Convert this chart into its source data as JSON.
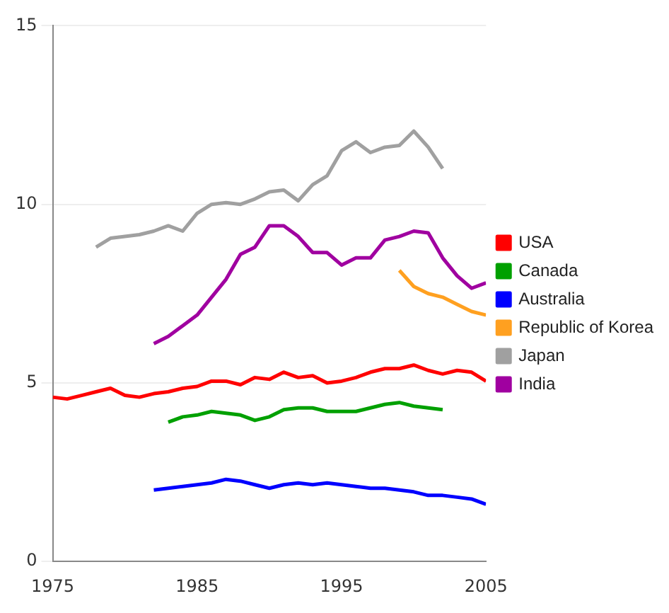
{
  "chart_data": {
    "type": "line",
    "xlim": [
      1975,
      2005
    ],
    "xticks": [
      1975,
      1985,
      1995,
      2005
    ],
    "ylim": [
      0,
      15
    ],
    "yticks": [
      0,
      5,
      10,
      15
    ],
    "grid": "y",
    "legend": "right",
    "marker": "none",
    "line_style": "solid",
    "series": [
      {
        "name": "USA",
        "color": "#ff0000",
        "x": [
          1975,
          1976,
          1977,
          1978,
          1979,
          1980,
          1981,
          1982,
          1983,
          1984,
          1985,
          1986,
          1987,
          1988,
          1989,
          1990,
          1991,
          1992,
          1993,
          1994,
          1995,
          1996,
          1997,
          1998,
          1999,
          2000,
          2001,
          2002,
          2003,
          2004,
          2005
        ],
        "values": [
          4.6,
          4.55,
          4.65,
          4.75,
          4.85,
          4.65,
          4.6,
          4.7,
          4.75,
          4.85,
          4.9,
          5.05,
          5.05,
          4.95,
          5.15,
          5.1,
          5.3,
          5.15,
          5.2,
          5.0,
          5.05,
          5.15,
          5.3,
          5.4,
          5.4,
          5.5,
          5.35,
          5.25,
          5.35,
          5.3,
          5.05
        ]
      },
      {
        "name": "Canada",
        "color": "#00a000",
        "x": [
          1983,
          1984,
          1985,
          1986,
          1987,
          1988,
          1989,
          1990,
          1991,
          1992,
          1993,
          1994,
          1995,
          1996,
          1997,
          1998,
          1999,
          2000,
          2001,
          2002
        ],
        "values": [
          3.9,
          4.05,
          4.1,
          4.2,
          4.15,
          4.1,
          3.95,
          4.05,
          4.25,
          4.3,
          4.3,
          4.2,
          4.2,
          4.2,
          4.3,
          4.4,
          4.45,
          4.35,
          4.3,
          4.25
        ]
      },
      {
        "name": "Australia",
        "color": "#0000ff",
        "x": [
          1982,
          1983,
          1984,
          1985,
          1986,
          1987,
          1988,
          1989,
          1990,
          1991,
          1992,
          1993,
          1994,
          1995,
          1996,
          1997,
          1998,
          1999,
          2000,
          2001,
          2002,
          2003,
          2004,
          2005
        ],
        "values": [
          2.0,
          2.05,
          2.1,
          2.15,
          2.2,
          2.3,
          2.25,
          2.15,
          2.05,
          2.15,
          2.2,
          2.15,
          2.2,
          2.15,
          2.1,
          2.05,
          2.05,
          2.0,
          1.95,
          1.85,
          1.85,
          1.8,
          1.75,
          1.6
        ]
      },
      {
        "name": "Republic of Korea",
        "color": "#ffa020",
        "x": [
          1999,
          2000,
          2001,
          2002,
          2003,
          2004,
          2005
        ],
        "values": [
          8.15,
          7.7,
          7.5,
          7.4,
          7.2,
          7.0,
          6.9
        ]
      },
      {
        "name": "Japan",
        "color": "#a0a0a0",
        "x": [
          1978,
          1979,
          1980,
          1981,
          1982,
          1983,
          1984,
          1985,
          1986,
          1987,
          1988,
          1989,
          1990,
          1991,
          1992,
          1993,
          1994,
          1995,
          1996,
          1997,
          1998,
          1999,
          2000,
          2001,
          2002
        ],
        "values": [
          8.8,
          9.05,
          9.1,
          9.15,
          9.25,
          9.4,
          9.25,
          9.75,
          10.0,
          10.05,
          10.0,
          10.15,
          10.35,
          10.4,
          10.1,
          10.55,
          10.8,
          11.5,
          11.75,
          11.45,
          11.6,
          11.65,
          12.05,
          11.6,
          11.0
        ]
      },
      {
        "name": "India",
        "color": "#a000a0",
        "x": [
          1982,
          1983,
          1984,
          1985,
          1986,
          1987,
          1988,
          1989,
          1990,
          1991,
          1992,
          1993,
          1994,
          1995,
          1996,
          1997,
          1998,
          1999,
          2000,
          2001,
          2002,
          2003,
          2004,
          2005
        ],
        "values": [
          6.1,
          6.3,
          6.6,
          6.9,
          7.4,
          7.9,
          8.6,
          8.8,
          9.4,
          9.4,
          9.1,
          8.65,
          8.65,
          8.3,
          8.5,
          8.5,
          9.0,
          9.1,
          9.25,
          9.2,
          8.5,
          8.0,
          7.65,
          7.8
        ]
      }
    ]
  }
}
